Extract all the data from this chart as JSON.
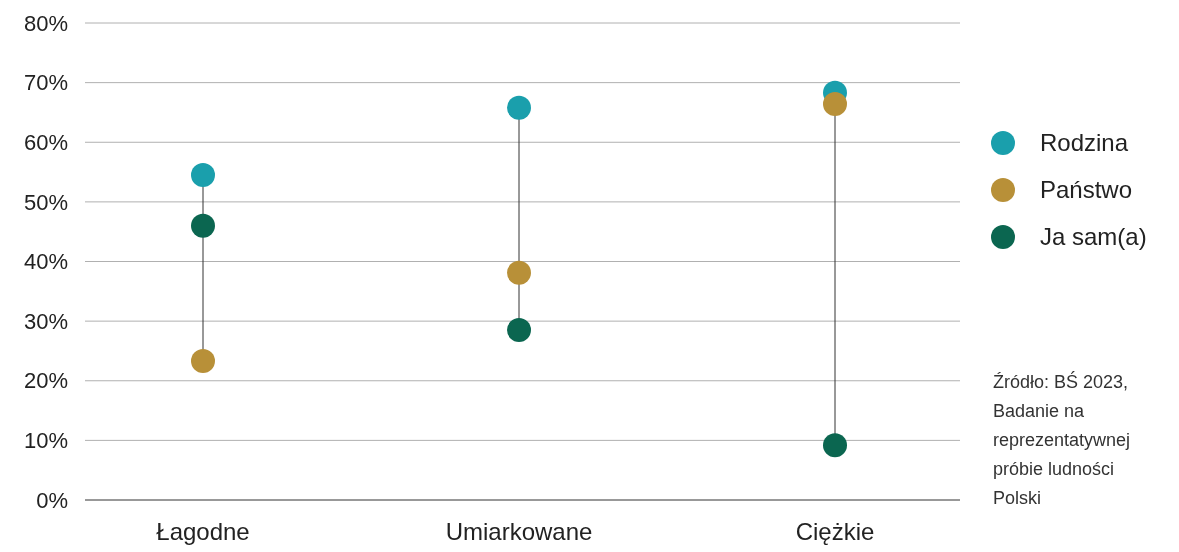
{
  "chart_data": {
    "type": "scatter",
    "categories": [
      "Łagodne",
      "Umiarkowane",
      "Ciężkie"
    ],
    "series": [
      {
        "name": "Rodzina",
        "color": "#1a9fac",
        "values": [
          54.5,
          65.8,
          68.3
        ]
      },
      {
        "name": "Państwo",
        "color": "#b89038",
        "values": [
          23.3,
          38.1,
          66.4
        ]
      },
      {
        "name": "Ja sam(a)",
        "color": "#0b6650",
        "values": [
          46.0,
          28.5,
          9.2
        ]
      }
    ],
    "ylim": [
      0,
      80
    ],
    "yticks": [
      {
        "value": 0,
        "label": "0%"
      },
      {
        "value": 10,
        "label": "10%"
      },
      {
        "value": 20,
        "label": "20%"
      },
      {
        "value": 30,
        "label": "30%"
      },
      {
        "value": 40,
        "label": "40%"
      },
      {
        "value": 50,
        "label": "50%"
      },
      {
        "value": 60,
        "label": "60%"
      },
      {
        "value": 70,
        "label": "70%"
      },
      {
        "value": 80,
        "label": "80%"
      }
    ],
    "grid": "y",
    "legend": "right",
    "marker": "circle",
    "annotations": [
      "Źródło: BŚ 2023, Badanie na reprezentatywnej próbie ludności Polski"
    ]
  }
}
